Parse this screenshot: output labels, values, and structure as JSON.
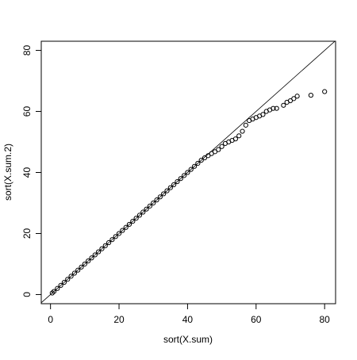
{
  "chart_data": {
    "type": "scatter",
    "x_label": "sort(X.sum)",
    "y_label": "sort(X.sum.2)",
    "x": [
      0.5,
      1,
      2,
      3,
      4,
      5,
      6,
      7,
      8,
      9,
      10,
      11,
      12,
      13,
      14,
      15,
      16,
      17,
      18,
      19,
      20,
      21,
      22,
      23,
      24,
      25,
      26,
      27,
      28,
      29,
      30,
      31,
      32,
      33,
      34,
      35,
      36,
      37,
      38,
      39,
      40,
      41,
      42,
      43,
      44,
      45,
      46,
      47,
      48,
      49,
      50,
      51,
      52,
      53,
      54,
      55,
      56,
      57,
      58,
      59,
      60,
      61,
      62,
      63,
      64,
      65,
      66,
      68,
      69,
      70,
      71,
      72,
      76,
      80
    ],
    "y": [
      0.5,
      1,
      2,
      3,
      4,
      5,
      6,
      7,
      8,
      9,
      10,
      11,
      12,
      13,
      14,
      15,
      16,
      17,
      18,
      19,
      20,
      21,
      22,
      23,
      24,
      25,
      26,
      27,
      28,
      29,
      30,
      31,
      32,
      33,
      34,
      35,
      36,
      37,
      38,
      39,
      40,
      41,
      42,
      43,
      44,
      44.8,
      45.5,
      46.2,
      46.8,
      47.5,
      48.5,
      49.5,
      50,
      50.5,
      51,
      52,
      53.5,
      55.5,
      57,
      57.5,
      58,
      58.5,
      59,
      60,
      60.5,
      61,
      61,
      62,
      63,
      63.5,
      64.2,
      65,
      65.3,
      66.5
    ],
    "color": "#000000",
    "abline": {
      "intercept": 0,
      "slope": 1
    },
    "xlim": [
      -2.7,
      83.2
    ],
    "ylim": [
      -3,
      83
    ],
    "xticks": [
      0,
      20,
      40,
      60,
      80
    ],
    "yticks": [
      0,
      20,
      40,
      60,
      80
    ]
  }
}
